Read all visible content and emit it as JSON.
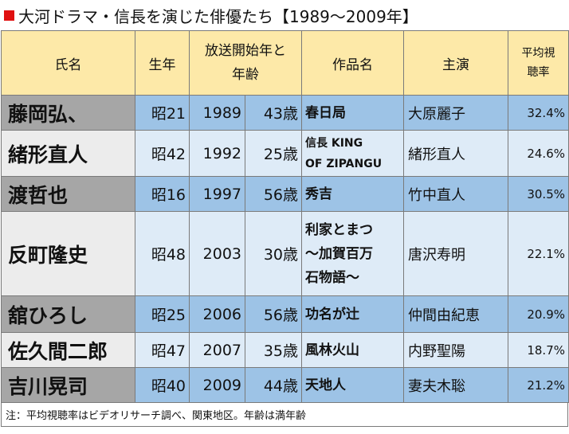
{
  "title": "大河ドラマ・信長を演じた俳優たち【1989～2009年】",
  "headers": {
    "name": "氏名",
    "birth": "生年",
    "start_line1": "放送開始年と",
    "start_line2": "年齢",
    "work": "作品名",
    "lead": "主演",
    "rating_line1": "平均視",
    "rating_line2": "聴率"
  },
  "rows": [
    {
      "name": "藤岡弘、",
      "birth": "昭21",
      "year": "1989",
      "age": "43歳",
      "work_lines": [
        "春日局"
      ],
      "lead": "大原麗子",
      "rating": "32.4%"
    },
    {
      "name": "緒形直人",
      "birth": "昭42",
      "year": "1992",
      "age": "25歳",
      "work_lines": [
        "信長 KING",
        "OF ZIPANGU"
      ],
      "lead": "緒形直人",
      "rating": "24.6%"
    },
    {
      "name": "渡哲也",
      "birth": "昭16",
      "year": "1997",
      "age": "56歳",
      "work_lines": [
        "秀吉"
      ],
      "lead": "竹中直人",
      "rating": "30.5%"
    },
    {
      "name": "反町隆史",
      "birth": "昭48",
      "year": "2003",
      "age": "30歳",
      "work_lines": [
        "利家とまつ",
        "～加賀百万",
        "石物語～"
      ],
      "lead": "唐沢寿明",
      "rating": "22.1%"
    },
    {
      "name": "舘ひろし",
      "birth": "昭25",
      "year": "2006",
      "age": "56歳",
      "work_lines": [
        "功名が辻"
      ],
      "lead": "仲間由紀恵",
      "rating": "20.9%"
    },
    {
      "name": "佐久間二郎",
      "birth": "昭47",
      "year": "2007",
      "age": "35歳",
      "work_lines": [
        "風林火山"
      ],
      "lead": "内野聖陽",
      "rating": "18.7%"
    },
    {
      "name": "吉川晃司",
      "birth": "昭40",
      "year": "2009",
      "age": "44歳",
      "work_lines": [
        "天地人"
      ],
      "lead": "妻夫木聡",
      "rating": "21.2%"
    }
  ],
  "footnote": "注：平均視聴率はビデオリサーチ調べ、関東地区。年齢は満年齢"
}
